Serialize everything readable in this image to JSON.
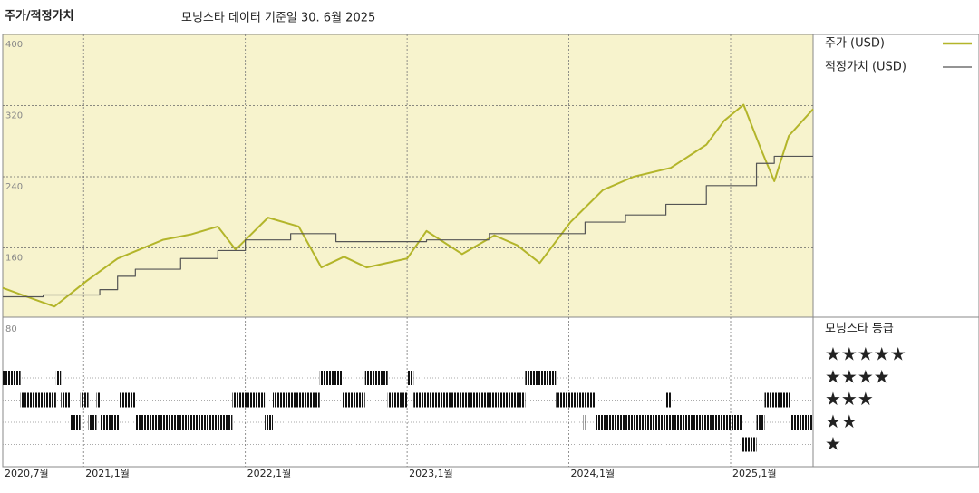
{
  "chart_data": {
    "type": "line",
    "title": "주가/적정가치",
    "subtitle": "모닝스타 데이터 기준일 30. 6월 2025",
    "xlim": [
      2020.5,
      2025.51
    ],
    "xticks": [
      {
        "value": 2020.5,
        "label": "2020,7월"
      },
      {
        "value": 2021.0,
        "label": "2021,1월"
      },
      {
        "value": 2022.0,
        "label": "2022,1월"
      },
      {
        "value": 2023.0,
        "label": "2023,1월"
      },
      {
        "value": 2024.0,
        "label": "2024,1월"
      },
      {
        "value": 2025.0,
        "label": "2025,1월"
      }
    ],
    "ylim": [
      80,
      400
    ],
    "yticks": [
      80,
      160,
      240,
      320,
      400
    ],
    "grid": true,
    "series": [
      {
        "name": "주가 (USD)",
        "color": "#b3b52a",
        "step": "none",
        "x": [
          2020.5,
          2020.65,
          2020.82,
          2021.02,
          2021.21,
          2021.49,
          2021.66,
          2021.83,
          2021.94,
          2022.14,
          2022.33,
          2022.47,
          2022.61,
          2022.75,
          2023.0,
          2023.12,
          2023.34,
          2023.54,
          2023.68,
          2023.82,
          2024.01,
          2024.21,
          2024.4,
          2024.63,
          2024.85,
          2024.96,
          2025.08,
          2025.19,
          2025.27,
          2025.36,
          2025.51
        ],
        "values": [
          115,
          105,
          94,
          123,
          148,
          169,
          175,
          184,
          158,
          194,
          184,
          138,
          150,
          138,
          148,
          179,
          153,
          174,
          163,
          143,
          189,
          225,
          240,
          250,
          276,
          303,
          321,
          270,
          235,
          286,
          316
        ]
      },
      {
        "name": "적정가치 (USD)",
        "color": "#555555",
        "step": "post",
        "x": [
          2020.5,
          2020.75,
          2021.1,
          2021.21,
          2021.32,
          2021.6,
          2021.83,
          2022.0,
          2022.28,
          2022.56,
          2023.12,
          2023.51,
          2024.1,
          2024.35,
          2024.6,
          2024.85,
          2025.16,
          2025.27,
          2025.51
        ],
        "values": [
          105,
          107,
          113,
          128,
          136,
          148,
          157,
          169,
          176,
          167,
          169,
          176,
          189,
          197,
          209,
          230,
          255,
          263,
          263
        ]
      }
    ],
    "rating_title": "모닝스타 등급",
    "rating_legend": [
      "★★★★★",
      "★★★★",
      "★★★",
      "★★",
      "★"
    ],
    "rating_periods": [
      {
        "start": 2020.5,
        "end": 2020.61,
        "stars": 4
      },
      {
        "start": 2020.61,
        "end": 2020.83,
        "stars": 3
      },
      {
        "start": 2020.83,
        "end": 2020.86,
        "stars": 4
      },
      {
        "start": 2020.86,
        "end": 2020.92,
        "stars": 3
      },
      {
        "start": 2020.92,
        "end": 2020.98,
        "stars": 2
      },
      {
        "start": 2020.98,
        "end": 2021.03,
        "stars": 3
      },
      {
        "start": 2021.03,
        "end": 2021.08,
        "stars": 2
      },
      {
        "start": 2021.08,
        "end": 2021.1,
        "stars": 3
      },
      {
        "start": 2021.1,
        "end": 2021.22,
        "stars": 2
      },
      {
        "start": 2021.22,
        "end": 2021.32,
        "stars": 3
      },
      {
        "start": 2021.32,
        "end": 2021.92,
        "stars": 2
      },
      {
        "start": 2021.92,
        "end": 2022.12,
        "stars": 3
      },
      {
        "start": 2022.12,
        "end": 2022.17,
        "stars": 2
      },
      {
        "start": 2022.17,
        "end": 2022.46,
        "stars": 3
      },
      {
        "start": 2022.46,
        "end": 2022.6,
        "stars": 4
      },
      {
        "start": 2022.6,
        "end": 2022.74,
        "stars": 3
      },
      {
        "start": 2022.74,
        "end": 2022.88,
        "stars": 4
      },
      {
        "start": 2022.88,
        "end": 2023.0,
        "stars": 3
      },
      {
        "start": 2023.0,
        "end": 2023.04,
        "stars": 4
      },
      {
        "start": 2023.04,
        "end": 2023.73,
        "stars": 3
      },
      {
        "start": 2023.73,
        "end": 2023.92,
        "stars": 4
      },
      {
        "start": 2023.92,
        "end": 2024.16,
        "stars": 3
      },
      {
        "start": 2024.09,
        "end": 2024.1,
        "stars": 2
      },
      {
        "start": 2024.16,
        "end": 2025.07,
        "stars": 2
      },
      {
        "start": 2024.6,
        "end": 2024.63,
        "stars": 3
      },
      {
        "start": 2025.07,
        "end": 2025.16,
        "stars": 1
      },
      {
        "start": 2025.16,
        "end": 2025.21,
        "stars": 2
      },
      {
        "start": 2025.21,
        "end": 2025.37,
        "stars": 3
      },
      {
        "start": 2025.37,
        "end": 2025.51,
        "stars": 2
      }
    ]
  }
}
